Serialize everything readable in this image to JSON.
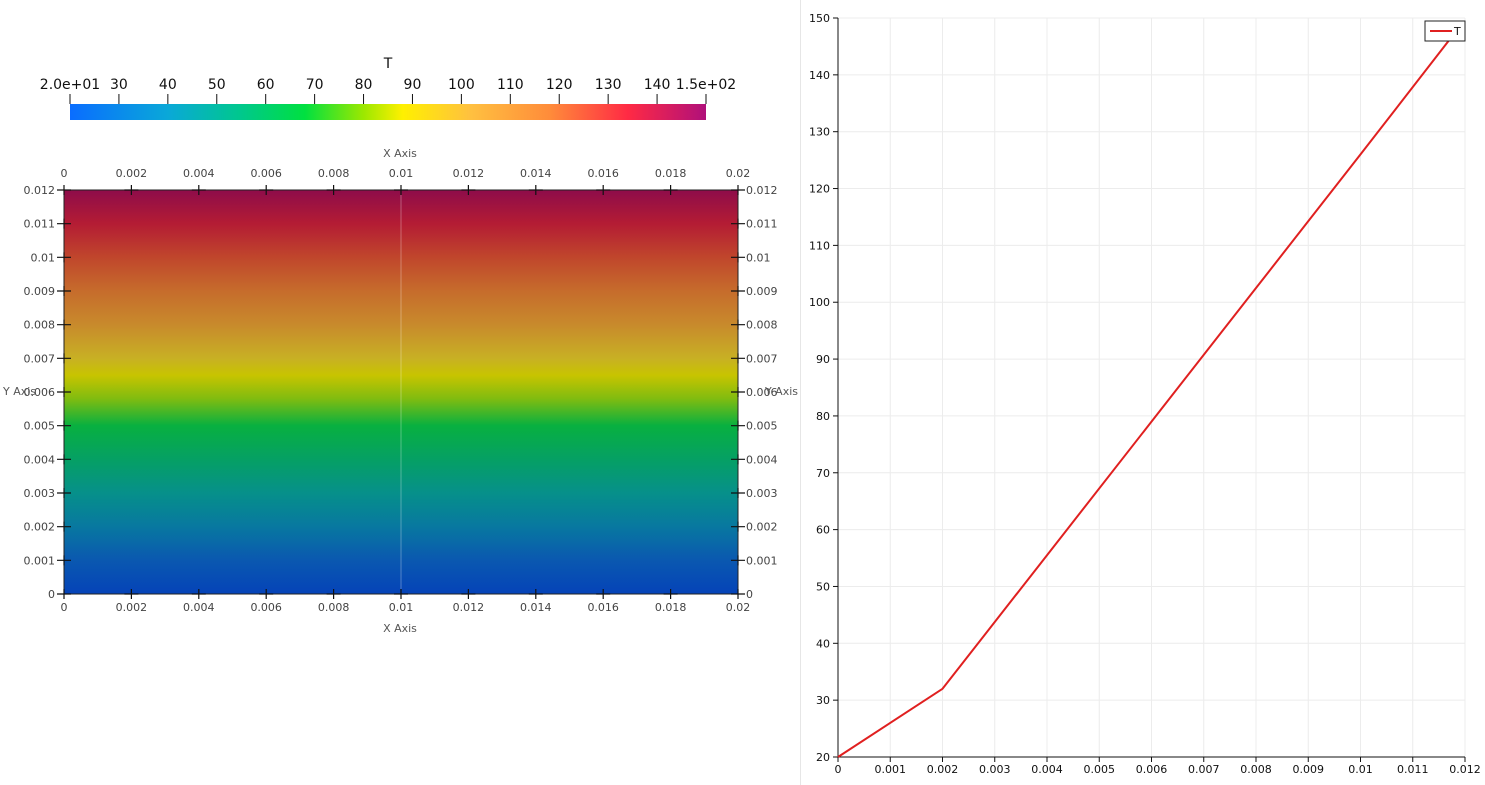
{
  "colorbar": {
    "title": "T",
    "tick_labels": [
      "2.0e+01",
      "30",
      "40",
      "50",
      "60",
      "70",
      "80",
      "90",
      "100",
      "110",
      "120",
      "130",
      "140",
      "1.5e+02"
    ],
    "tick_values": [
      20,
      30,
      40,
      50,
      60,
      70,
      80,
      90,
      100,
      110,
      120,
      130,
      140,
      150
    ],
    "range": [
      20,
      150
    ],
    "colormap": [
      {
        "v": 20,
        "c": "#0a6dff"
      },
      {
        "v": 40,
        "c": "#0aa8d8"
      },
      {
        "v": 55,
        "c": "#00c88c"
      },
      {
        "v": 68,
        "c": "#00e040"
      },
      {
        "v": 80,
        "c": "#9ce800"
      },
      {
        "v": 88,
        "c": "#fff000"
      },
      {
        "v": 102,
        "c": "#ffc040"
      },
      {
        "v": 118,
        "c": "#ff8c3a"
      },
      {
        "v": 134,
        "c": "#ff2a44"
      },
      {
        "v": 150,
        "c": "#b0107a"
      }
    ]
  },
  "field": {
    "x_axis_title": "X Axis",
    "y_axis_title": "Y Axis",
    "x_range": [
      0,
      0.02
    ],
    "y_range": [
      0,
      0.012
    ],
    "x_ticks": [
      "0",
      "0.002",
      "0.004",
      "0.006",
      "0.008",
      "0.01",
      "0.012",
      "0.014",
      "0.016",
      "0.018",
      "0.02"
    ],
    "y_ticks": [
      "0",
      "0.001",
      "0.002",
      "0.003",
      "0.004",
      "0.005",
      "0.006",
      "0.007",
      "0.008",
      "0.009",
      "0.01",
      "0.011",
      "0.012"
    ],
    "gradient": [
      {
        "y": 0,
        "c": "#0543b8"
      },
      {
        "y": 0.001,
        "c": "#0a58b0"
      },
      {
        "y": 0.002,
        "c": "#0878a0"
      },
      {
        "y": 0.003,
        "c": "#06908a"
      },
      {
        "y": 0.004,
        "c": "#05a064"
      },
      {
        "y": 0.005,
        "c": "#08b040"
      },
      {
        "y": 0.0058,
        "c": "#80bc10"
      },
      {
        "y": 0.0065,
        "c": "#c8c400"
      },
      {
        "y": 0.007,
        "c": "#c8b024"
      },
      {
        "y": 0.008,
        "c": "#c88a2c"
      },
      {
        "y": 0.009,
        "c": "#c66c2c"
      },
      {
        "y": 0.01,
        "c": "#c0462c"
      },
      {
        "y": 0.011,
        "c": "#b41c34"
      },
      {
        "y": 0.012,
        "c": "#8e0c4a"
      }
    ]
  },
  "chart_data": {
    "type": "line",
    "title": "",
    "xlabel": "",
    "ylabel": "",
    "xlim": [
      0,
      0.012
    ],
    "ylim": [
      20,
      150
    ],
    "grid": true,
    "legend_position": "top-right",
    "x_tick_labels": [
      "0",
      "0.001",
      "0.002",
      "0.003",
      "0.004",
      "0.005",
      "0.006",
      "0.007",
      "0.008",
      "0.009",
      "0.01",
      "0.011",
      "0.012"
    ],
    "y_tick_labels": [
      "20",
      "30",
      "40",
      "50",
      "60",
      "70",
      "80",
      "90",
      "100",
      "110",
      "120",
      "130",
      "140",
      "150"
    ],
    "series": [
      {
        "name": "T",
        "color": "#e02020",
        "x": [
          0,
          0.002,
          0.004,
          0.006,
          0.008,
          0.01,
          0.0118
        ],
        "y": [
          20,
          32,
          55.5,
          79,
          102.5,
          126,
          147.3
        ]
      }
    ]
  }
}
